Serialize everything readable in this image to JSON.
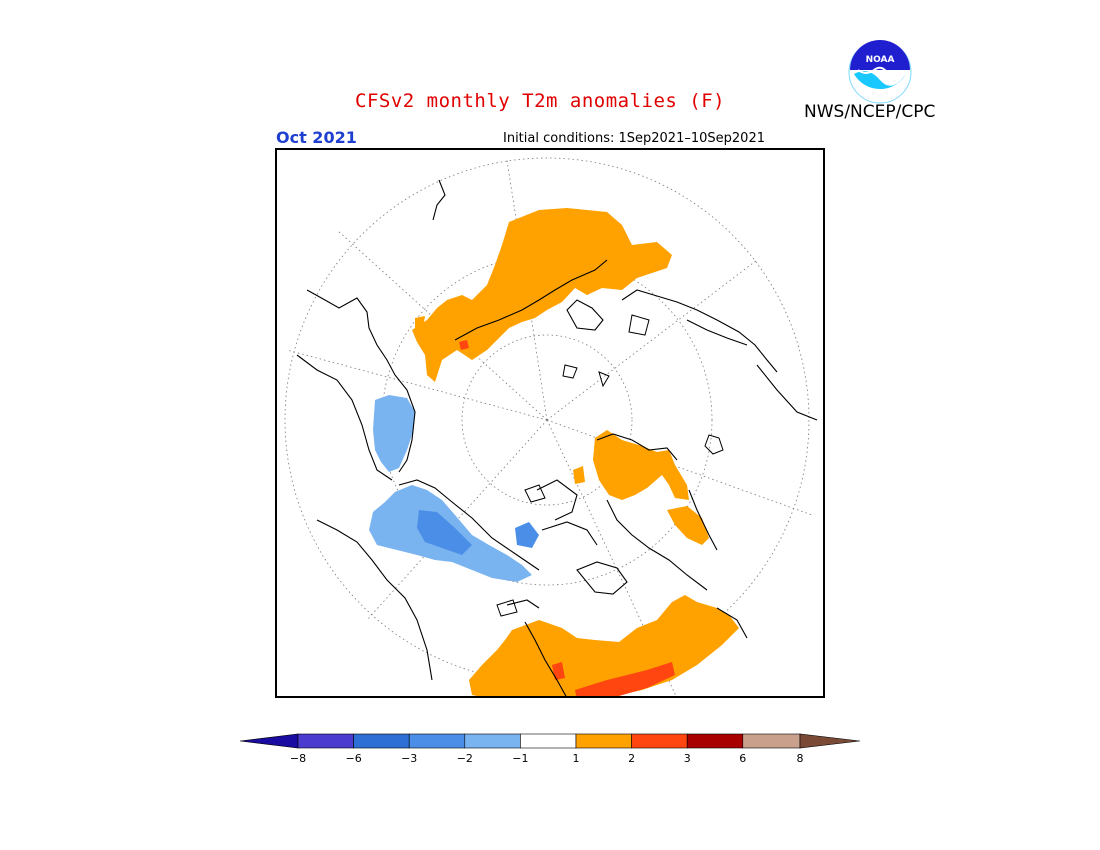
{
  "header": {
    "title": "CFSv2 monthly T2m anomalies (F)",
    "agency": "NWS/NCEP/CPC",
    "logo_text": "NOAA",
    "target_month": "Oct 2021",
    "initial_conditions": "Initial conditions: 1Sep2021–10Sep2021"
  },
  "map": {
    "projection": "north-polar-stereographic",
    "gridlines": "dotted",
    "warm_regions": [
      "Eurasia",
      "Scandinavia",
      "Northeast Canada",
      "United States"
    ],
    "cold_regions": [
      "Western Canada",
      "Alaska"
    ]
  },
  "colorbar": {
    "ticks": [
      "−8",
      "−6",
      "−3",
      "−2",
      "−1",
      "1",
      "2",
      "3",
      "6",
      "8"
    ],
    "colors": [
      "#1a0ca0",
      "#4b3ccf",
      "#2d6fd4",
      "#4a8ee8",
      "#7ab4f0",
      "#ffffff",
      "#ffa200",
      "#ff4510",
      "#a80000",
      "#c8a08c",
      "#7a4a36"
    ]
  }
}
